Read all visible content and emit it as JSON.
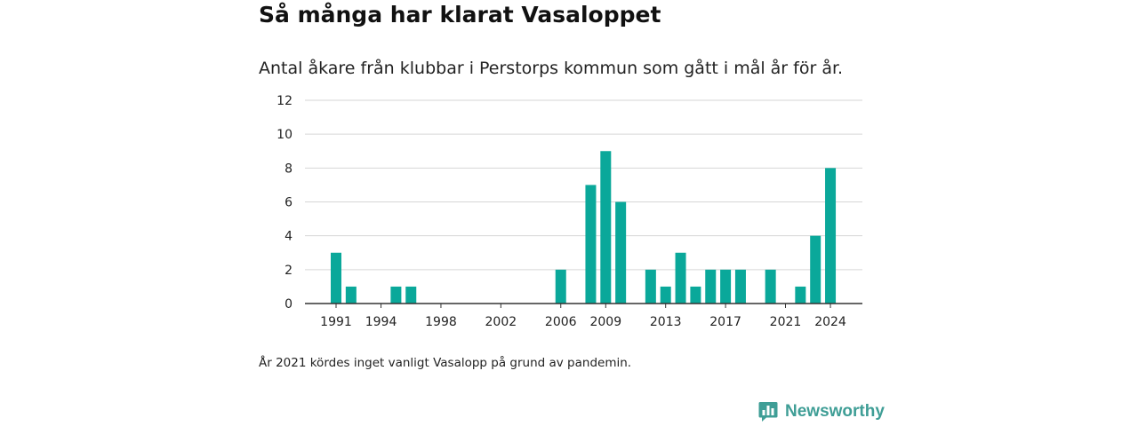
{
  "title": "Så många har klarat Vasaloppet",
  "subtitle": "Antal åkare från klubbar i Perstorps kommun som gått i mål år för år.",
  "footnote": "År 2021 kördes inget vanligt Vasalopp på grund av pandemin.",
  "brand": {
    "name": "Newsworthy",
    "icon": "newsworthy-logo-icon",
    "color": "#3f9e96"
  },
  "chart_data": {
    "type": "bar",
    "title": "",
    "xlabel": "",
    "ylabel": "",
    "bar_color": "#0aa89a",
    "ylim": [
      0,
      12
    ],
    "yticks": [
      0,
      2,
      4,
      6,
      8,
      10,
      12
    ],
    "x_tick_labels": [
      1991,
      1994,
      1998,
      2002,
      2006,
      2009,
      2013,
      2017,
      2021,
      2024
    ],
    "grid": true,
    "categories": [
      1991,
      1992,
      1993,
      1994,
      1995,
      1996,
      1997,
      1998,
      1999,
      2000,
      2001,
      2002,
      2003,
      2004,
      2005,
      2006,
      2007,
      2008,
      2009,
      2010,
      2011,
      2012,
      2013,
      2014,
      2015,
      2016,
      2017,
      2018,
      2019,
      2020,
      2021,
      2022,
      2023,
      2024
    ],
    "values": [
      3,
      1,
      0,
      0,
      1,
      1,
      0,
      0,
      0,
      0,
      0,
      0,
      0,
      0,
      0,
      2,
      0,
      7,
      9,
      6,
      0,
      2,
      1,
      3,
      1,
      2,
      2,
      2,
      0,
      2,
      0,
      1,
      4,
      8
    ]
  }
}
